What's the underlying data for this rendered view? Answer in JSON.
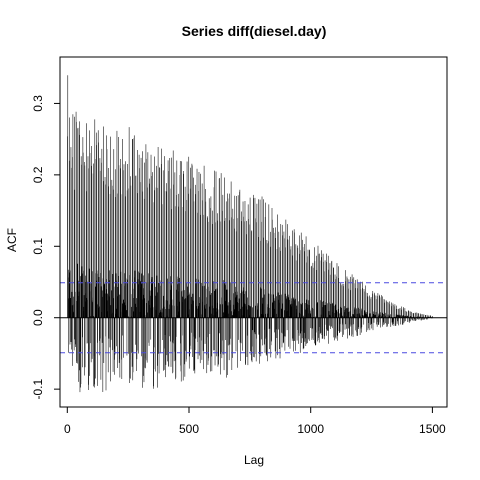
{
  "chart_data": {
    "type": "bar",
    "title": "Series diff(diesel.day)",
    "xlabel": "Lag",
    "ylabel": "ACF",
    "xlim": [
      -30,
      1560
    ],
    "ylim": [
      -0.125,
      0.365
    ],
    "x_ticks": [
      0,
      500,
      1000,
      1500
    ],
    "x_tick_labels": [
      "0",
      "500",
      "1000",
      "1500"
    ],
    "y_ticks": [
      -0.1,
      0.0,
      0.1,
      0.2,
      0.3
    ],
    "y_tick_labels": [
      "-0.1",
      "0.0",
      "0.1",
      "0.2",
      "0.3"
    ],
    "zero_line": 0,
    "confidence_bounds": [
      0.049,
      -0.049
    ],
    "confidence_line_color": "#4a4ae0",
    "bar_color": "#000000",
    "grid": false,
    "legend": "none",
    "max_lag": 1500,
    "upper_envelope": {
      "lag": [
        1,
        10,
        20,
        30,
        40,
        50,
        100,
        150,
        200,
        250,
        300,
        350,
        400,
        450,
        500,
        550,
        600,
        650,
        700,
        750,
        800,
        850,
        900,
        950,
        1000,
        1050,
        1100,
        1150,
        1200,
        1250,
        1300,
        1350,
        1400,
        1450,
        1500
      ],
      "acf": [
        0.345,
        0.3,
        0.31,
        0.285,
        0.32,
        0.29,
        0.28,
        0.275,
        0.265,
        0.27,
        0.26,
        0.255,
        0.245,
        0.24,
        0.23,
        0.225,
        0.21,
        0.215,
        0.19,
        0.185,
        0.17,
        0.155,
        0.14,
        0.125,
        0.11,
        0.095,
        0.08,
        0.065,
        0.055,
        0.04,
        0.03,
        0.02,
        0.012,
        0.006,
        0.003
      ]
    },
    "lower_envelope": {
      "lag": [
        1,
        50,
        100,
        150,
        200,
        250,
        300,
        350,
        400,
        450,
        500,
        550,
        600,
        650,
        700,
        750,
        800,
        850,
        900,
        950,
        1000,
        1050,
        1100,
        1150,
        1200,
        1250,
        1300,
        1350,
        1400,
        1450,
        1500
      ],
      "acf": [
        -0.05,
        -0.11,
        -0.1,
        -0.105,
        -0.095,
        -0.1,
        -0.105,
        -0.115,
        -0.09,
        -0.095,
        -0.085,
        -0.08,
        -0.08,
        -0.085,
        -0.075,
        -0.07,
        -0.065,
        -0.06,
        -0.055,
        -0.05,
        -0.045,
        -0.04,
        -0.035,
        -0.03,
        -0.025,
        -0.02,
        -0.015,
        -0.012,
        -0.008,
        -0.004,
        -0.002
      ]
    }
  }
}
